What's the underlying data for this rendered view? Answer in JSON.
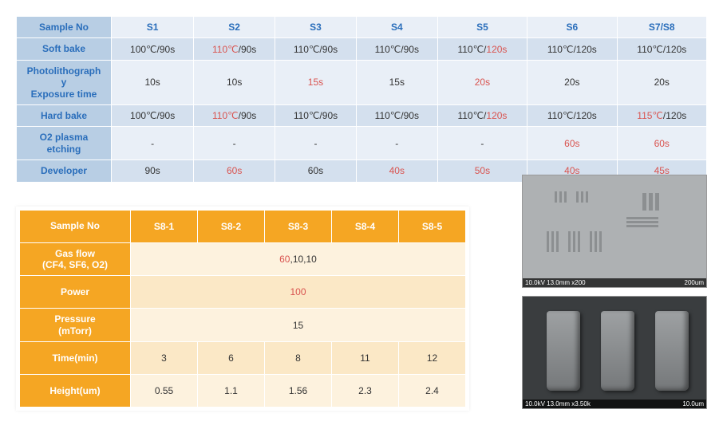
{
  "table1": {
    "row_labels": [
      "Sample No",
      "Soft bake",
      "Photolithography Exposure time",
      "Hard bake",
      "O2 plasma etching",
      "Developer"
    ],
    "columns": [
      "S1",
      "S2",
      "S3",
      "S4",
      "S5",
      "S6",
      "S7/S8"
    ],
    "rows": [
      [
        {
          "text": "100℃/90s"
        },
        {
          "parts": [
            {
              "t": "110℃",
              "red": true
            },
            {
              "t": "/90s"
            }
          ]
        },
        {
          "text": "110℃/90s"
        },
        {
          "text": "110℃/90s"
        },
        {
          "parts": [
            {
              "t": "110℃/"
            },
            {
              "t": "120s",
              "red": true
            }
          ]
        },
        {
          "text": "110℃/120s"
        },
        {
          "text": "110℃/120s"
        }
      ],
      [
        {
          "text": "10s"
        },
        {
          "text": "10s"
        },
        {
          "text": "15s",
          "red": true
        },
        {
          "text": "15s"
        },
        {
          "text": "20s",
          "red": true
        },
        {
          "text": "20s"
        },
        {
          "text": "20s"
        }
      ],
      [
        {
          "text": "100℃/90s"
        },
        {
          "parts": [
            {
              "t": "110℃",
              "red": true
            },
            {
              "t": "/90s"
            }
          ]
        },
        {
          "text": "110℃/90s"
        },
        {
          "text": "110℃/90s"
        },
        {
          "parts": [
            {
              "t": "110℃/"
            },
            {
              "t": "120s",
              "red": true
            }
          ]
        },
        {
          "text": "110℃/120s"
        },
        {
          "parts": [
            {
              "t": "115℃",
              "red": true
            },
            {
              "t": "/120s"
            }
          ]
        }
      ],
      [
        {
          "text": "-"
        },
        {
          "text": "-"
        },
        {
          "text": "-"
        },
        {
          "text": "-"
        },
        {
          "text": "-"
        },
        {
          "text": "60s",
          "red": true
        },
        {
          "text": "60s",
          "red": true
        }
      ],
      [
        {
          "text": "90s"
        },
        {
          "text": "60s",
          "red": true
        },
        {
          "text": "60s"
        },
        {
          "text": "40s",
          "red": true
        },
        {
          "text": "50s",
          "red": true
        },
        {
          "text": "40s",
          "red": true
        },
        {
          "text": "45s",
          "red": true
        }
      ]
    ]
  },
  "table2": {
    "row_labels": [
      "Sample No",
      "Gas flow (CF4, SF6, O2)",
      "Power",
      "Pressure (mTorr)",
      "Time(min)",
      "Height(um)"
    ],
    "columns": [
      "S8-1",
      "S8-2",
      "S8-3",
      "S8-4",
      "S8-5"
    ],
    "rows": [
      {
        "colspan": 5,
        "parts": [
          {
            "t": "60",
            "red": true
          },
          {
            "t": ",10,10"
          }
        ]
      },
      {
        "colspan": 5,
        "text": "100",
        "red": true
      },
      {
        "colspan": 5,
        "text": "15"
      },
      {
        "cells": [
          "3",
          "6",
          "8",
          "11",
          "12"
        ]
      },
      {
        "cells": [
          "0.55",
          "1.1",
          "1.56",
          "2.3",
          "2.4"
        ]
      }
    ]
  },
  "sem1": {
    "left": "10.0kV 13.0mm x200",
    "right": "200um"
  },
  "sem2": {
    "left": "10.0kV 13.0mm x3.50k",
    "right": "10.0um"
  }
}
